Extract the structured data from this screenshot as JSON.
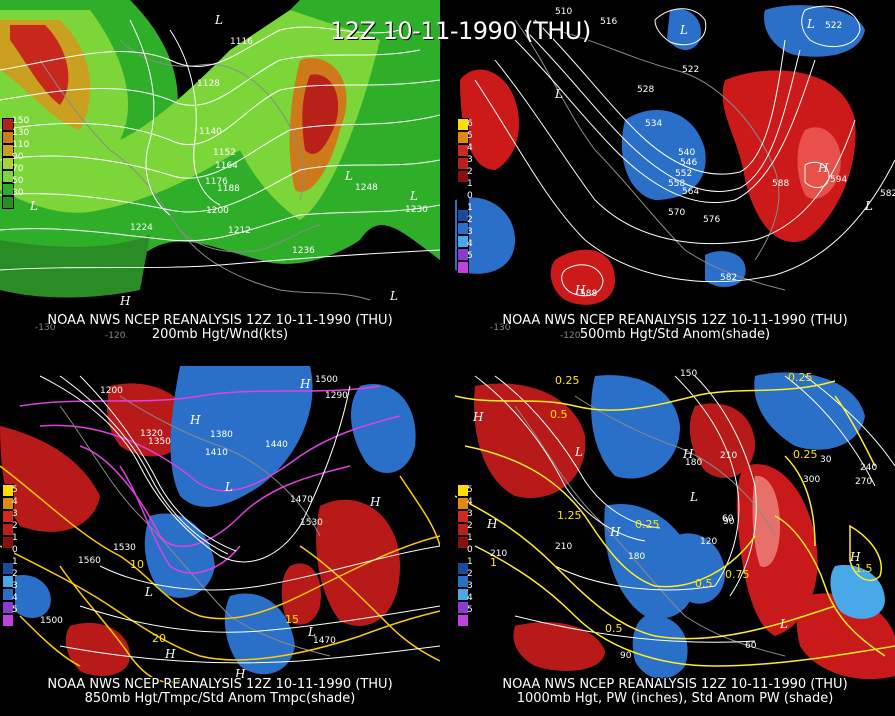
{
  "main_title": "12Z 10-11-1990 (THU)",
  "colors": {
    "background": "#000000",
    "contour": "#ffffff",
    "map_outline": "#8a8a8a",
    "warm_anom": "#cc1a1a",
    "cold_anom": "#2a6fc8",
    "wind_green": "#2fae2a",
    "temp_contour": "#ffcc00",
    "neg_temp": "#e040e0",
    "pw_contour": "#ffee22"
  },
  "panels": [
    {
      "id": "200mb",
      "caption_line1": "NOAA NWS NCEP REANALYSIS 12Z 10-11-1990 (THU)",
      "caption_line2": "200mb Hgt/Wnd(kts)",
      "legend": [
        "150",
        "130",
        "110",
        "90",
        "70",
        "50",
        "30"
      ],
      "labels": [
        "1116",
        "1128",
        "1140",
        "1152",
        "1164",
        "1176",
        "1188",
        "1200",
        "1212",
        "1224",
        "1236",
        "1248",
        "1230"
      ],
      "lon_labels": [
        "-130",
        "-120"
      ]
    },
    {
      "id": "500mb",
      "caption_line1": "NOAA NWS NCEP REANALYSIS 12Z 10-11-1990 (THU)",
      "caption_line2": "500mb Hgt/Std Anom(shade)",
      "legend": [
        "6",
        "5",
        "4",
        "3",
        "2",
        "1",
        "0",
        "1",
        "2",
        "3",
        "4",
        "5"
      ],
      "labels": [
        "510",
        "516",
        "522",
        "528",
        "534",
        "540",
        "546",
        "552",
        "558",
        "564",
        "570",
        "576",
        "582",
        "588",
        "594",
        "516",
        "522"
      ],
      "lon_labels": [
        "-130",
        "-120"
      ]
    },
    {
      "id": "850mb",
      "caption_line1": "NOAA NWS NCEP REANALYSIS 12Z 10-11-1990 (THU)",
      "caption_line2": "850mb Hgt/Tmpc/Std Anom Tmpc(shade)",
      "legend": [
        "5",
        "4",
        "3",
        "2",
        "1",
        "0",
        "1",
        "2",
        "3",
        "4",
        "5"
      ],
      "labels": [
        "1200",
        "1290",
        "1320",
        "1350",
        "1380",
        "1410",
        "1440",
        "1470",
        "1500",
        "1530",
        "1560",
        "1470",
        "1500",
        "1530"
      ],
      "temp_labels": [
        "10",
        "20",
        "15"
      ]
    },
    {
      "id": "1000mb",
      "caption_line1": "NOAA NWS NCEP REANALYSIS 12Z 10-11-1990 (THU)",
      "caption_line2": "1000mb Hgt, PW (inches), Std Anom PW (shade)",
      "legend": [
        "5",
        "4",
        "3",
        "2",
        "1",
        "0",
        "1",
        "2",
        "3",
        "4",
        "5"
      ],
      "labels": [
        "150",
        "180",
        "210",
        "240",
        "270",
        "300",
        "60",
        "90",
        "120",
        "30"
      ],
      "pw_labels": [
        "0.25",
        "0.5",
        "0.75",
        "1",
        "1.25",
        "1.5"
      ]
    }
  ]
}
